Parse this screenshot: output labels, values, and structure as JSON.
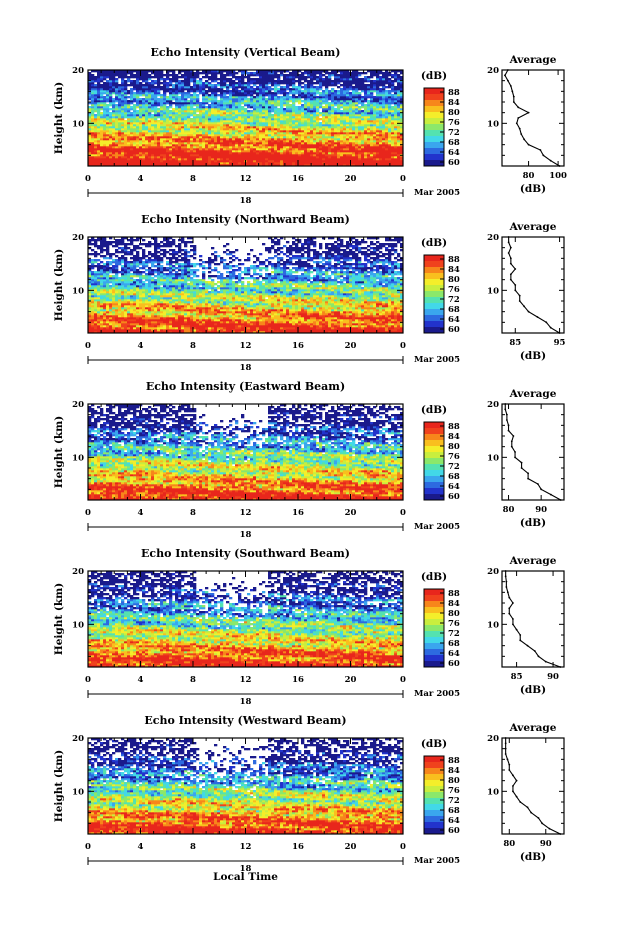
{
  "figure": {
    "xlabel": "Local Time"
  },
  "colorbar": {
    "unit": "(dB)",
    "ticks": [
      "88",
      "84",
      "80",
      "76",
      "72",
      "68",
      "64",
      "60"
    ],
    "colors": [
      "#1a1a8c",
      "#2233cc",
      "#2d6ae0",
      "#3aa6ee",
      "#42d8e8",
      "#54e2b0",
      "#8be86a",
      "#c9ee3e",
      "#f4ee2a",
      "#f9bf1e",
      "#f7861b",
      "#f0421d",
      "#e8261c"
    ]
  },
  "chart_data": [
    {
      "type": "heatmap",
      "title": "Echo Intensity (Vertical Beam)",
      "ylabel": "Height (km)",
      "x_ticks": [
        "0",
        "4",
        "8",
        "12",
        "16",
        "20",
        "0"
      ],
      "date_label": "18",
      "date_suffix": "Mar 2005",
      "y_ticks": [
        "20",
        "10"
      ],
      "xlim": [
        0,
        24
      ],
      "ylim": [
        2,
        20
      ],
      "profile": {
        "title": "Average",
        "xlabel": "(dB)",
        "x_ticks": [
          "80",
          "100"
        ],
        "y_ticks": [
          "20",
          "10"
        ],
        "xlim": [
          62,
          104
        ],
        "ylim": [
          2,
          20
        ],
        "height": [
          2,
          3,
          4,
          5,
          6,
          7,
          8,
          9,
          10,
          11,
          12,
          13,
          14,
          15,
          16,
          17,
          18,
          19,
          20
        ],
        "values": [
          101,
          95,
          90,
          88,
          80,
          77,
          75,
          74,
          72,
          73,
          80,
          73,
          70,
          70,
          69,
          68,
          66,
          64,
          66
        ]
      }
    },
    {
      "type": "heatmap",
      "title": "Echo Intensity (Northward Beam)",
      "ylabel": "Height (km)",
      "x_ticks": [
        "0",
        "4",
        "8",
        "12",
        "16",
        "20",
        "0"
      ],
      "date_label": "18",
      "date_suffix": "Mar 2005",
      "y_ticks": [
        "20",
        "10"
      ],
      "xlim": [
        0,
        24
      ],
      "ylim": [
        2,
        20
      ],
      "profile": {
        "title": "Average",
        "xlabel": "(dB)",
        "x_ticks": [
          "85",
          "95"
        ],
        "y_ticks": [
          "20",
          "10"
        ],
        "xlim": [
          82,
          96
        ],
        "ylim": [
          2,
          20
        ],
        "height": [
          2,
          3,
          4,
          5,
          6,
          7,
          8,
          9,
          10,
          11,
          12,
          13,
          14,
          15,
          16,
          17,
          18,
          19,
          20
        ],
        "values": [
          95,
          93,
          92,
          90,
          88,
          87,
          86,
          86,
          85,
          85,
          84,
          84,
          85,
          84,
          84,
          83.5,
          84,
          83.5,
          83.5
        ]
      }
    },
    {
      "type": "heatmap",
      "title": "Echo Intensity (Eastward Beam)",
      "ylabel": "Height (km)",
      "x_ticks": [
        "0",
        "4",
        "8",
        "12",
        "16",
        "20",
        "0"
      ],
      "date_label": "18",
      "date_suffix": "Mar 2005",
      "y_ticks": [
        "20",
        "10"
      ],
      "xlim": [
        0,
        24
      ],
      "ylim": [
        2,
        20
      ],
      "profile": {
        "title": "Average",
        "xlabel": "(dB)",
        "x_ticks": [
          "80",
          "90"
        ],
        "y_ticks": [
          "20",
          "10"
        ],
        "xlim": [
          78,
          97
        ],
        "ylim": [
          2,
          20
        ],
        "height": [
          2,
          3,
          4,
          5,
          6,
          7,
          8,
          9,
          10,
          11,
          12,
          13,
          14,
          15,
          16,
          17,
          18,
          19,
          20
        ],
        "values": [
          96,
          93,
          90,
          89,
          86,
          86,
          84,
          84,
          82,
          82,
          81,
          81,
          81.5,
          80,
          80,
          79.5,
          79.5,
          79,
          79
        ]
      }
    },
    {
      "type": "heatmap",
      "title": "Echo Intensity (Southward Beam)",
      "ylabel": "Height (km)",
      "x_ticks": [
        "0",
        "4",
        "8",
        "12",
        "16",
        "20",
        "0"
      ],
      "date_label": "18",
      "date_suffix": "Mar 2005",
      "y_ticks": [
        "20",
        "10"
      ],
      "xlim": [
        0,
        24
      ],
      "ylim": [
        2,
        20
      ],
      "profile": {
        "title": "Average",
        "xlabel": "(dB)",
        "x_ticks": [
          "85",
          "90"
        ],
        "y_ticks": [
          "20",
          "10"
        ],
        "xlim": [
          83,
          91.5
        ],
        "ylim": [
          2,
          20
        ],
        "height": [
          2,
          3,
          4,
          5,
          6,
          7,
          8,
          9,
          10,
          11,
          12,
          13,
          14,
          15,
          16,
          17,
          18,
          19,
          20
        ],
        "values": [
          91,
          89,
          88,
          87.5,
          86.5,
          85.5,
          85.5,
          85,
          84.5,
          84.5,
          84,
          84,
          84.5,
          84,
          83.8,
          83.6,
          83.6,
          83.5,
          83.5
        ]
      }
    },
    {
      "type": "heatmap",
      "title": "Echo Intensity (Westward Beam)",
      "ylabel": "Height (km)",
      "x_ticks": [
        "0",
        "4",
        "8",
        "12",
        "16",
        "20",
        "0"
      ],
      "date_label": "18",
      "date_suffix": "Mar 2005",
      "y_ticks": [
        "20",
        "10"
      ],
      "xlim": [
        0,
        24
      ],
      "ylim": [
        2,
        20
      ],
      "profile": {
        "title": "Average",
        "xlabel": "(dB)",
        "x_ticks": [
          "80",
          "90"
        ],
        "y_ticks": [
          "20",
          "10"
        ],
        "xlim": [
          78,
          95
        ],
        "ylim": [
          2,
          20
        ],
        "height": [
          2,
          3,
          4,
          5,
          6,
          7,
          8,
          9,
          10,
          11,
          12,
          13,
          14,
          15,
          16,
          17,
          18,
          19,
          20
        ],
        "values": [
          94,
          91,
          89,
          88,
          86,
          85,
          83,
          82,
          81,
          81,
          82,
          81,
          80,
          80,
          79.5,
          79,
          79,
          79,
          79
        ]
      }
    }
  ]
}
